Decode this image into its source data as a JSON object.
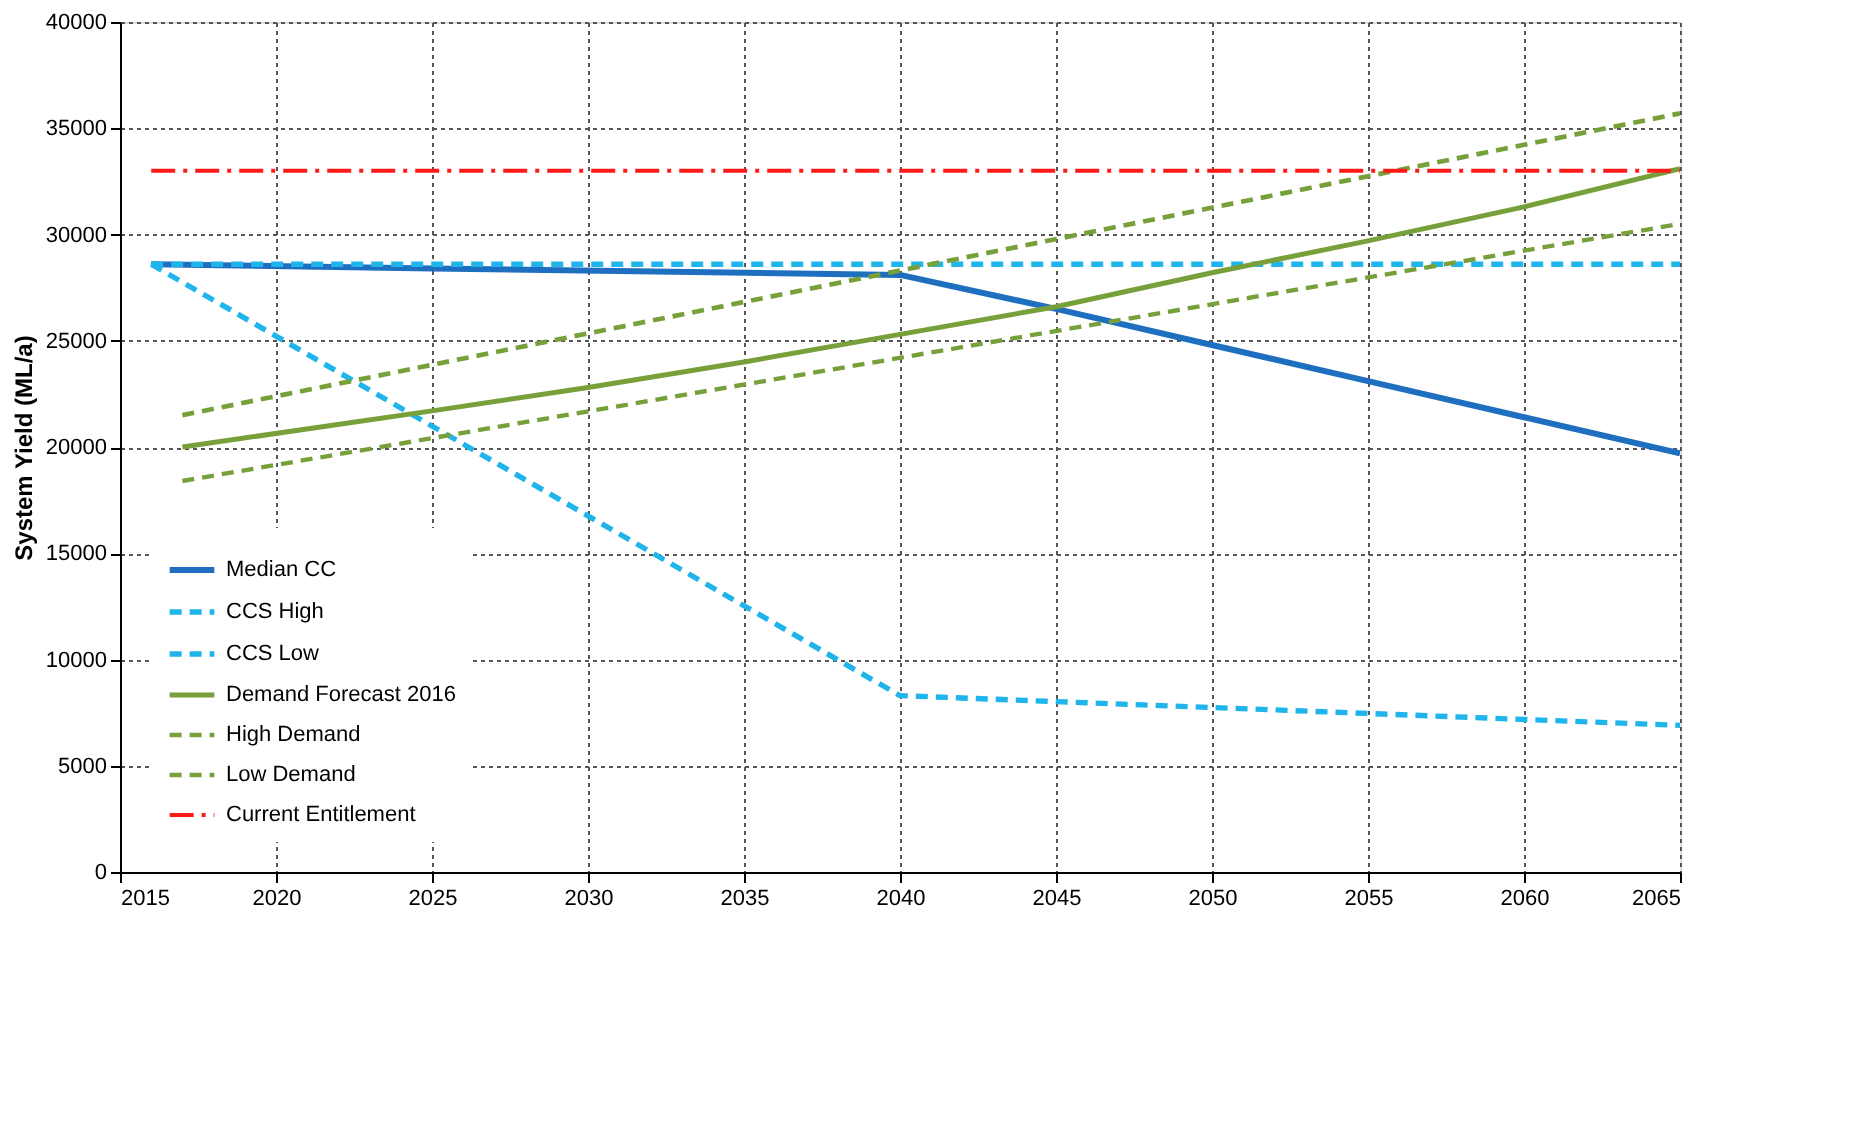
{
  "chart_data": {
    "type": "line",
    "ylabel": "System Yield (ML/a)",
    "xlim": [
      2015,
      2065
    ],
    "xticks": [
      2015,
      2020,
      2025,
      2030,
      2035,
      2040,
      2045,
      2050,
      2055,
      2060,
      2065
    ],
    "ylim": [
      0,
      40000
    ],
    "yticks": [
      0,
      5000,
      10000,
      15000,
      20000,
      25000,
      30000,
      35000,
      40000
    ],
    "grid": true,
    "legend": "bottom left",
    "marker": "none",
    "series": [
      {
        "name": "Median CC",
        "color": "#1f6fc0",
        "line_style": "solid",
        "x": [
          2016,
          2025,
          2040,
          2045,
          2050,
          2055,
          2060,
          2065
        ],
        "values": [
          28600,
          28400,
          28100,
          26500,
          24800,
          23100,
          21400,
          19700
        ]
      },
      {
        "name": "CCS High",
        "color": "#1fb4ea",
        "line_style": "dashed",
        "x": [
          2016,
          2065
        ],
        "values": [
          28600,
          28600
        ]
      },
      {
        "name": "CCS Low",
        "color": "#1fb4ea",
        "line_style": "dashed",
        "x": [
          2016,
          2040,
          2065
        ],
        "values": [
          28600,
          8300,
          6900
        ]
      },
      {
        "name": "Demand Forecast 2016",
        "color": "#77a03a",
        "line_style": "solid",
        "x": [
          2017,
          2025,
          2030,
          2035,
          2040,
          2045,
          2050,
          2055,
          2060,
          2065
        ],
        "values": [
          20000,
          21700,
          22800,
          24000,
          25300,
          26600,
          28200,
          29700,
          31300,
          33100
        ]
      },
      {
        "name": "High Demand",
        "color": "#77a03a",
        "line_style": "dashed",
        "x": [
          2017,
          2065
        ],
        "values": [
          21500,
          35700
        ]
      },
      {
        "name": "Low Demand",
        "color": "#77a03a",
        "line_style": "dashed",
        "x": [
          2017,
          2065
        ],
        "values": [
          18400,
          30500
        ]
      },
      {
        "name": "Current Entitlement",
        "color": "#ff1a1a",
        "line_style": "dashdot",
        "x": [
          2016,
          2065
        ],
        "values": [
          33000,
          33000
        ]
      }
    ]
  }
}
